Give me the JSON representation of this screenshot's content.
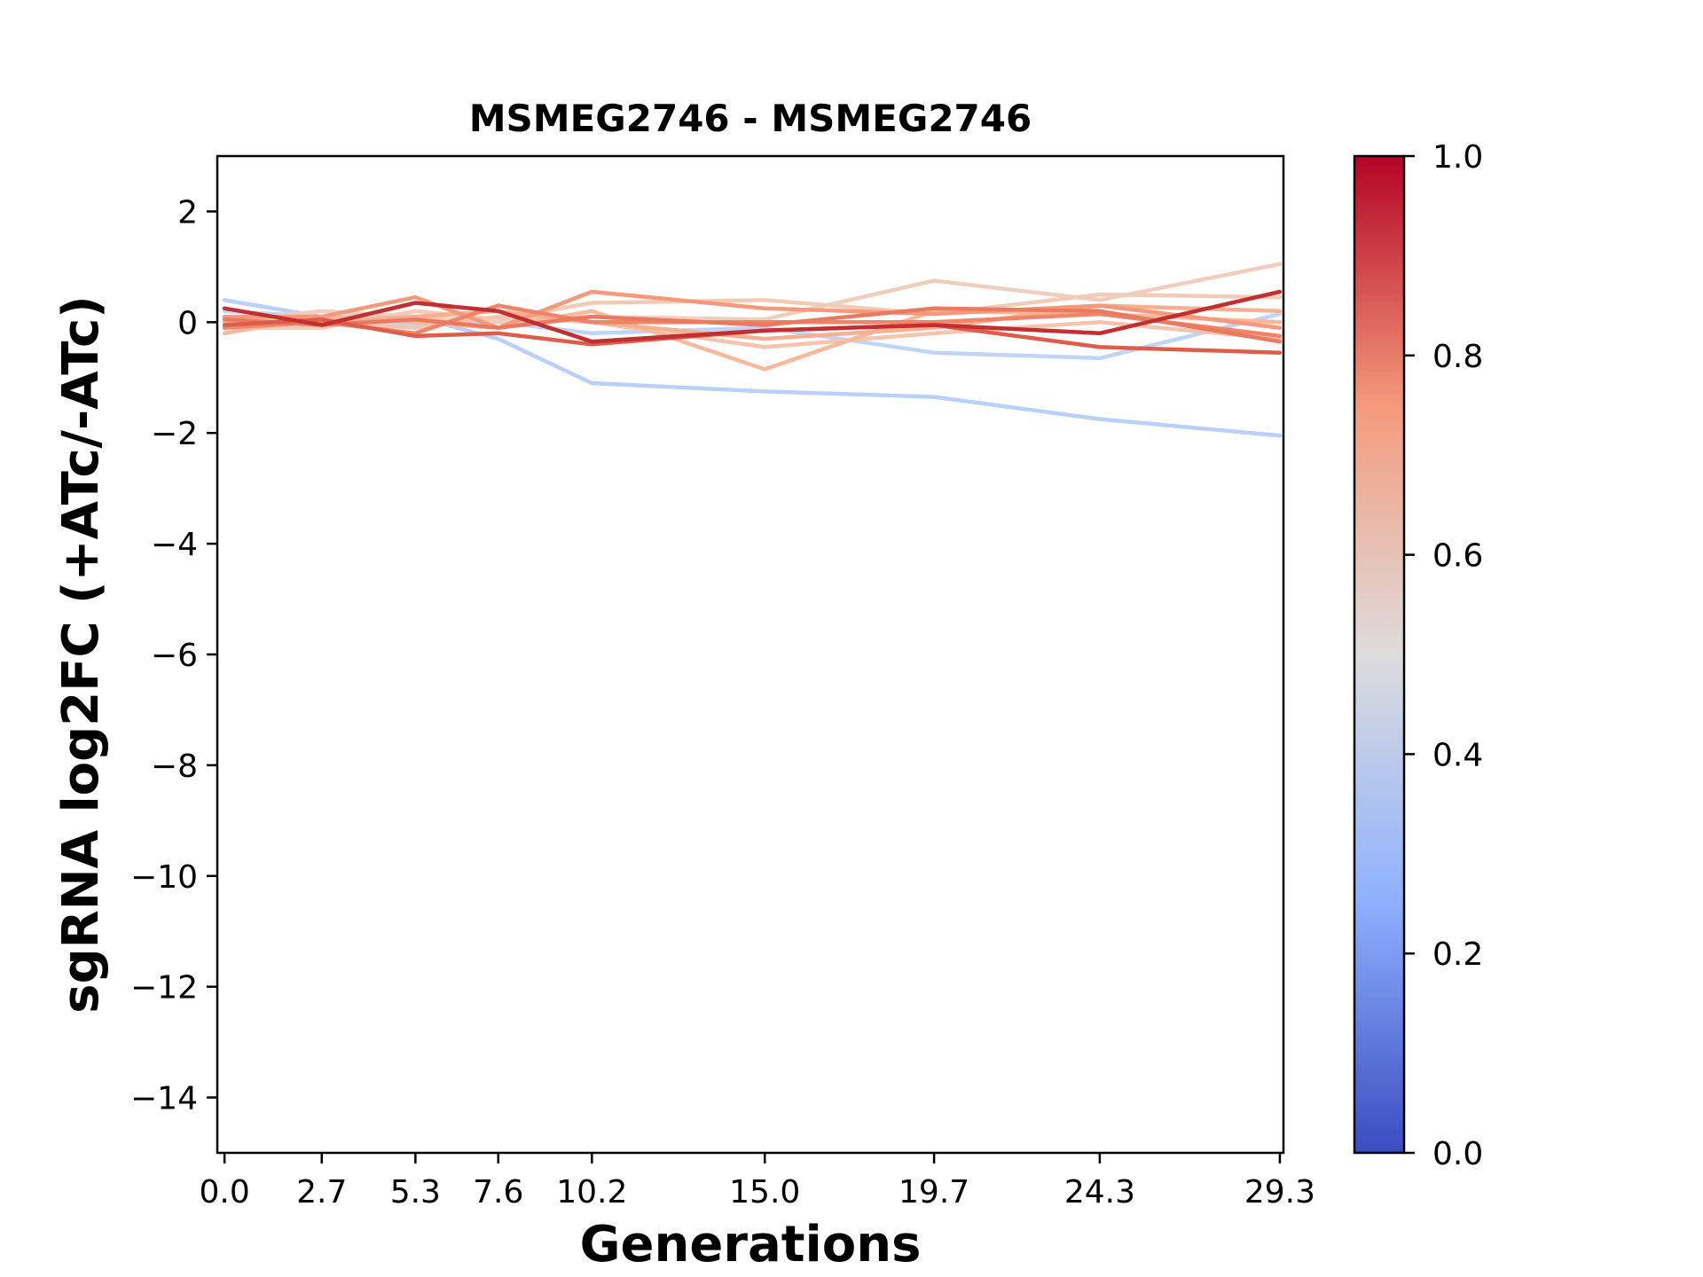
{
  "chart_data": {
    "type": "line",
    "title": "MSMEG2746 - MSMEG2746",
    "xlabel": "Generations",
    "ylabel": "sgRNA log2FC (+ATc/-ATc)",
    "x": [
      0.0,
      2.7,
      5.3,
      7.6,
      10.2,
      15.0,
      19.7,
      24.3,
      29.3
    ],
    "x_tick_labels": [
      "0.0",
      "2.7",
      "5.3",
      "7.6",
      "10.2",
      "15.0",
      "19.7",
      "24.3",
      "29.3"
    ],
    "xlim": [
      -0.2,
      29.4
    ],
    "ylim": [
      -15,
      3
    ],
    "y_ticks": [
      2,
      0,
      -2,
      -4,
      -6,
      -8,
      -10,
      -12,
      -14
    ],
    "y_tick_labels": [
      "2",
      "0",
      "−2",
      "−4",
      "−6",
      "−8",
      "−10",
      "−12",
      "−14"
    ],
    "grid": false,
    "colorbar": {
      "colormap": "coolwarm",
      "range": [
        0.0,
        1.0
      ],
      "ticks": [
        1.0,
        0.8,
        0.6,
        0.4,
        0.2,
        0.0
      ],
      "tick_labels": [
        "1.0",
        "0.8",
        "0.6",
        "0.4",
        "0.2",
        "0.0"
      ],
      "stops": [
        {
          "v": 0.0,
          "color": "#3b4cc0"
        },
        {
          "v": 0.25,
          "color": "#8db0fe"
        },
        {
          "v": 0.5,
          "color": "#dddcdc"
        },
        {
          "v": 0.75,
          "color": "#f49a7b"
        },
        {
          "v": 1.0,
          "color": "#b40426"
        }
      ]
    },
    "series": [
      {
        "color_value": 0.38,
        "color": "#b9d0f9",
        "values": [
          0.4,
          0.1,
          0.1,
          -0.3,
          -1.1,
          -1.25,
          -1.35,
          -1.75,
          -2.05
        ]
      },
      {
        "color_value": 0.4,
        "color": "#c0d4f5",
        "values": [
          0.2,
          0.1,
          -0.05,
          0.0,
          -0.2,
          -0.1,
          -0.55,
          -0.65,
          0.15
        ]
      },
      {
        "color_value": 0.62,
        "color": "#efcebd",
        "values": [
          0.0,
          0.2,
          0.1,
          0.0,
          0.1,
          0.05,
          0.75,
          0.4,
          1.05
        ]
      },
      {
        "color_value": 0.6,
        "color": "#f2cbb7",
        "values": [
          -0.1,
          -0.1,
          0.2,
          0.05,
          0.35,
          0.4,
          0.15,
          0.5,
          0.45
        ]
      },
      {
        "color_value": 0.65,
        "color": "#f5c4ac",
        "values": [
          0.1,
          0.0,
          -0.1,
          0.1,
          0.0,
          -0.45,
          -0.2,
          0.0,
          -0.3
        ]
      },
      {
        "color_value": 0.7,
        "color": "#f7b89c",
        "values": [
          -0.2,
          0.1,
          0.0,
          -0.1,
          0.2,
          -0.85,
          0.2,
          0.15,
          0.0
        ]
      },
      {
        "color_value": 0.72,
        "color": "#f7af91",
        "values": [
          0.0,
          0.0,
          0.1,
          0.2,
          0.0,
          -0.3,
          -0.1,
          0.3,
          0.2
        ]
      },
      {
        "color_value": 0.76,
        "color": "#f49a7b",
        "values": [
          0.1,
          0.1,
          0.45,
          -0.1,
          0.55,
          0.25,
          0.15,
          0.3,
          -0.1
        ]
      },
      {
        "color_value": 0.8,
        "color": "#ee8468",
        "values": [
          -0.1,
          0.0,
          -0.2,
          0.3,
          0.0,
          0.0,
          0.0,
          0.15,
          -0.25
        ]
      },
      {
        "color_value": 0.83,
        "color": "#e97a5f",
        "values": [
          0.05,
          -0.05,
          0.05,
          -0.1,
          0.1,
          -0.05,
          0.25,
          0.2,
          -0.35
        ]
      },
      {
        "color_value": 0.88,
        "color": "#dc5d4a",
        "values": [
          -0.05,
          0.05,
          -0.25,
          -0.2,
          -0.4,
          -0.15,
          -0.05,
          -0.45,
          -0.55
        ]
      },
      {
        "color_value": 0.94,
        "color": "#c32e31",
        "values": [
          0.25,
          -0.05,
          0.35,
          0.2,
          -0.35,
          -0.15,
          -0.05,
          -0.2,
          0.55
        ]
      }
    ]
  }
}
